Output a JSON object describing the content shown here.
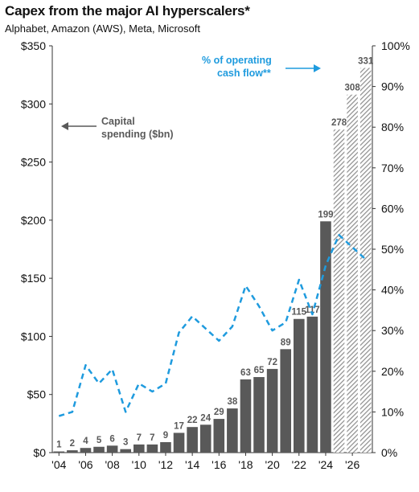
{
  "title": "Capex from the major AI hyperscalers*",
  "subtitle": "Alphabet, Amazon (AWS), Meta, Microsoft",
  "annotations": {
    "capex_line1": "Capital",
    "capex_line2": "spending ($bn)",
    "ocf_line1": "% of operating",
    "ocf_line2": "cash flow**"
  },
  "colors": {
    "bar_actual": "#595959",
    "bar_estimate_stripe": "#8c8c8c",
    "line": "#1f9bde",
    "axis_text": "#111111",
    "annotation_text": "#595959"
  },
  "chart_data": {
    "type": "bar",
    "title": "Capex from the major AI hyperscalers*",
    "subtitle": "Alphabet, Amazon (AWS), Meta, Microsoft",
    "categories": [
      "2004",
      "2005",
      "2006",
      "2007",
      "2008",
      "2009",
      "2010",
      "2011",
      "2012",
      "2013",
      "2014",
      "2015",
      "2016",
      "2017",
      "2018",
      "2019",
      "2020",
      "2021",
      "2022",
      "2023",
      "2024",
      "2025",
      "2026",
      "2027"
    ],
    "x_tick_labels": [
      "'04",
      "'06",
      "'08",
      "'10",
      "'12",
      "'14",
      "'16",
      "'18",
      "'20",
      "'22",
      "'24",
      "'26"
    ],
    "series": [
      {
        "name": "Capital spending ($bn)",
        "type": "bar",
        "axis": "left",
        "values": [
          1,
          2,
          4,
          5,
          6,
          3,
          7,
          7,
          9,
          17,
          22,
          24,
          29,
          38,
          63,
          65,
          72,
          89,
          115,
          117,
          199,
          278,
          308,
          331
        ],
        "data_labels": [
          "1",
          "2",
          "4",
          "5",
          "6",
          "3",
          "7",
          "7",
          "9",
          "17",
          "22",
          "24",
          "29",
          "38",
          "63",
          "65",
          "72",
          "89",
          "115",
          "117",
          "199",
          "278",
          "308",
          "331"
        ],
        "estimate_from_index": 21
      },
      {
        "name": "% of operating cash flow**",
        "type": "line",
        "axis": "right",
        "style": "dashed",
        "values": [
          9,
          10,
          21.5,
          17,
          20.5,
          10,
          17,
          15,
          17,
          29.5,
          33.5,
          30.5,
          27.5,
          31,
          41,
          36,
          30,
          32,
          42.5,
          34,
          46,
          53.5,
          50.5,
          47.5
        ]
      }
    ],
    "y_left": {
      "min": 0,
      "max": 350,
      "ticks": [
        "$0",
        "$50",
        "$100",
        "$150",
        "$200",
        "$250",
        "$300",
        "$350"
      ],
      "tick_values": [
        0,
        50,
        100,
        150,
        200,
        250,
        300,
        350
      ]
    },
    "y_right": {
      "min": 0,
      "max": 100,
      "ticks": [
        "0%",
        "10%",
        "20%",
        "30%",
        "40%",
        "50%",
        "60%",
        "70%",
        "80%",
        "90%",
        "100%"
      ],
      "tick_values": [
        0,
        10,
        20,
        30,
        40,
        50,
        60,
        70,
        80,
        90,
        100
      ]
    },
    "grid": false,
    "legend": "annotations"
  }
}
